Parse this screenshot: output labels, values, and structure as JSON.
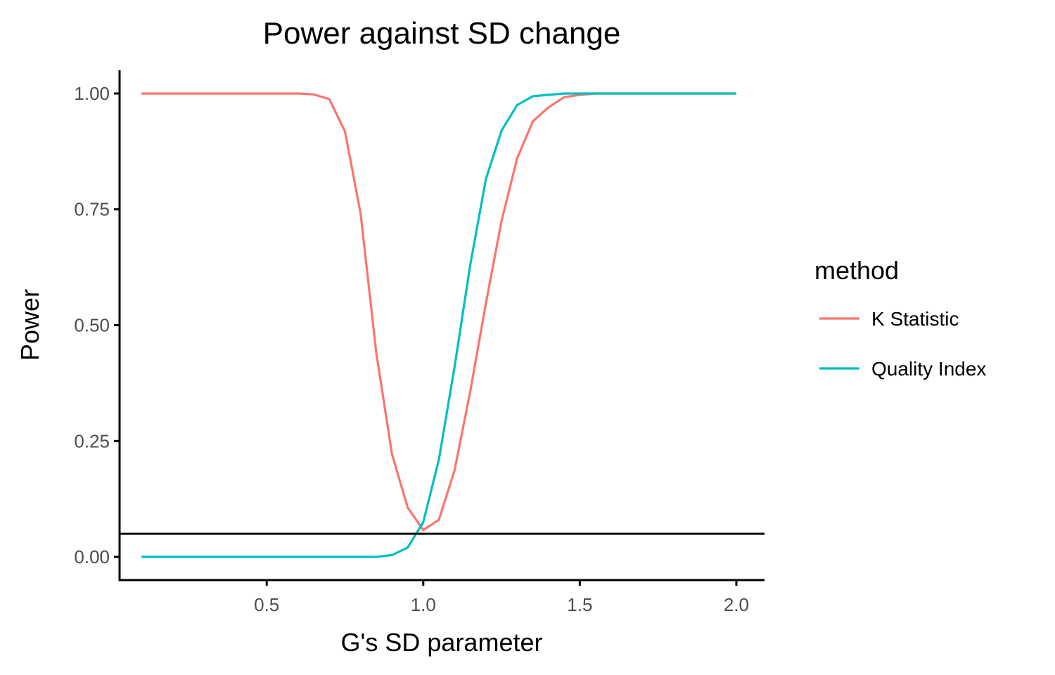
{
  "chart_data": {
    "type": "line",
    "title": "Power against SD change",
    "xlabel": "G's SD parameter",
    "ylabel": "Power",
    "xlim": [
      0.03,
      2.09
    ],
    "ylim": [
      -0.05,
      1.05
    ],
    "x_ticks": [
      0.5,
      1.0,
      1.5,
      2.0
    ],
    "x_tick_labels": [
      "0.5",
      "1.0",
      "1.5",
      "2.0"
    ],
    "y_ticks": [
      0,
      0.25,
      0.5,
      0.75,
      1.0
    ],
    "y_tick_labels": [
      "0.00",
      "0.25",
      "0.50",
      "0.75",
      "1.00"
    ],
    "hline": 0.05,
    "grid": false,
    "legend": {
      "title": "method",
      "position": "right"
    },
    "series": [
      {
        "name": "K Statistic",
        "color": "#F8766D",
        "x": [
          0.1,
          0.15,
          0.2,
          0.25,
          0.3,
          0.35,
          0.4,
          0.45,
          0.5,
          0.55,
          0.6,
          0.65,
          0.7,
          0.75,
          0.8,
          0.85,
          0.9,
          0.95,
          1.0,
          1.05,
          1.1,
          1.15,
          1.2,
          1.25,
          1.3,
          1.35,
          1.4,
          1.45,
          1.5,
          1.55,
          1.6,
          1.65,
          1.7,
          1.75,
          1.8,
          1.85,
          1.9,
          1.95,
          2.0
        ],
        "y": [
          1.0,
          1.0,
          1.0,
          1.0,
          1.0,
          1.0,
          1.0,
          1.0,
          1.0,
          1.0,
          1.0,
          0.998,
          0.988,
          0.918,
          0.74,
          0.44,
          0.222,
          0.107,
          0.058,
          0.08,
          0.187,
          0.357,
          0.547,
          0.725,
          0.86,
          0.94,
          0.97,
          0.992,
          0.997,
          1.0,
          1.0,
          1.0,
          1.0,
          1.0,
          1.0,
          1.0,
          1.0,
          1.0,
          1.0
        ]
      },
      {
        "name": "Quality Index",
        "color": "#00BFC4",
        "x": [
          0.1,
          0.15,
          0.2,
          0.25,
          0.3,
          0.35,
          0.4,
          0.45,
          0.5,
          0.55,
          0.6,
          0.65,
          0.7,
          0.75,
          0.8,
          0.85,
          0.9,
          0.95,
          1.0,
          1.05,
          1.1,
          1.15,
          1.2,
          1.25,
          1.3,
          1.35,
          1.4,
          1.45,
          1.5,
          1.55,
          1.6,
          1.65,
          1.7,
          1.75,
          1.8,
          1.85,
          1.9,
          1.95,
          2.0
        ],
        "y": [
          0.0,
          0.0,
          0.0,
          0.0,
          0.0,
          0.0,
          0.0,
          0.0,
          0.0,
          0.0,
          0.0,
          0.0,
          0.0,
          0.0,
          0.0,
          0.0,
          0.004,
          0.02,
          0.075,
          0.21,
          0.41,
          0.63,
          0.815,
          0.92,
          0.975,
          0.994,
          0.997,
          1.0,
          1.0,
          1.0,
          1.0,
          1.0,
          1.0,
          1.0,
          1.0,
          1.0,
          1.0,
          1.0,
          1.0
        ]
      }
    ]
  }
}
